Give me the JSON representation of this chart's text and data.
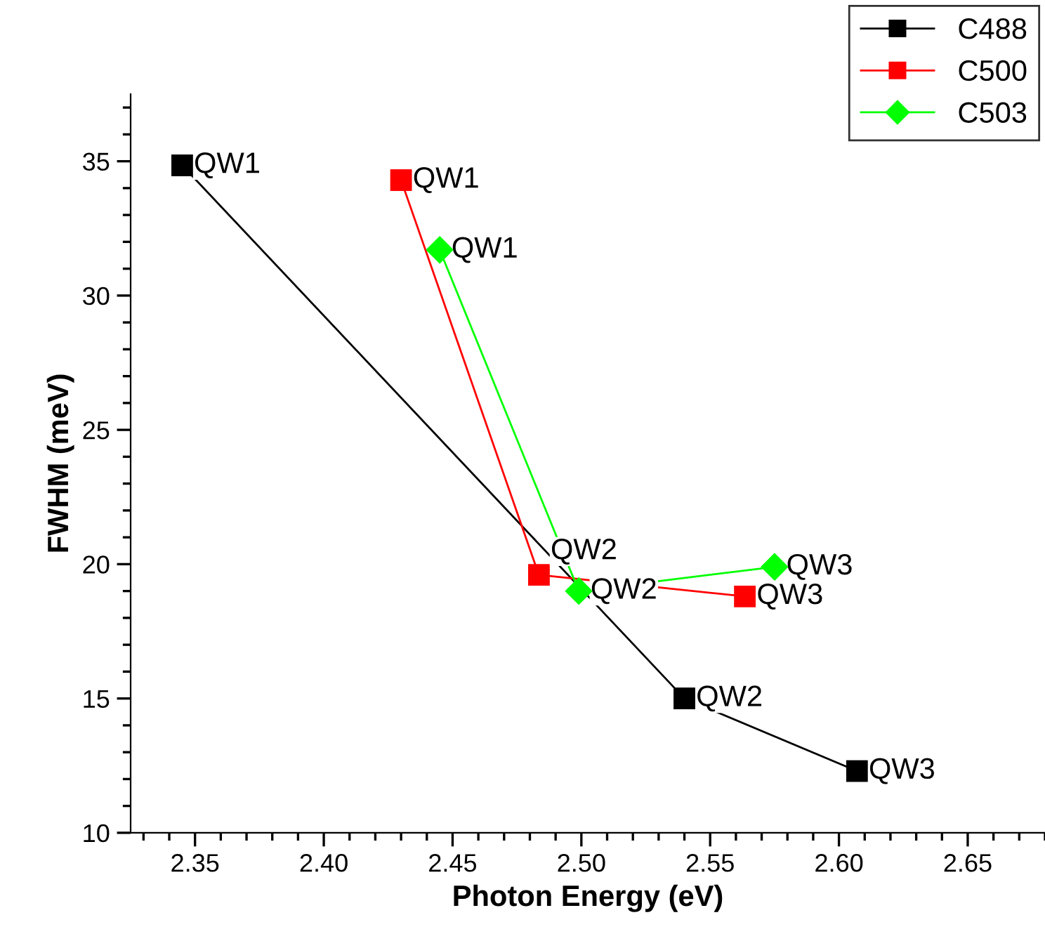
{
  "chart_data": {
    "type": "line",
    "xlabel": "Photon Energy (eV)",
    "ylabel": "FWHM (meV)",
    "xlim": [
      2.325,
      2.68
    ],
    "ylim": [
      10,
      37.5
    ],
    "xticks": [
      2.35,
      {
        "value": 2.4,
        "label": "2.40"
      },
      2.45,
      {
        "value": 2.5,
        "label": "2.50"
      },
      2.55,
      {
        "value": 2.6,
        "label": "2.60"
      },
      2.65
    ],
    "yticks": [
      10,
      15,
      20,
      25,
      30,
      35
    ],
    "legend": "top right",
    "grid": false,
    "line_style": "solid",
    "series": [
      {
        "name": "C488",
        "color": "#000000",
        "marker": "square",
        "x": [
          2.345,
          2.54,
          2.607
        ],
        "values": [
          34.85,
          15.0,
          12.3
        ]
      },
      {
        "name": "C500",
        "color": "#ff0000",
        "marker": "square",
        "x": [
          2.43,
          2.4835,
          2.5635
        ],
        "values": [
          34.3,
          19.6,
          18.8
        ]
      },
      {
        "name": "C503",
        "color": "#00ff00",
        "marker": "diamond",
        "x": [
          2.445,
          2.499,
          2.575
        ],
        "values": [
          31.7,
          19.0,
          19.9
        ]
      }
    ],
    "annotations": [
      {
        "text": "QW1",
        "x": 2.345,
        "y": 34.85
      },
      {
        "text": "QW2",
        "x": 2.54,
        "y": 15.0
      },
      {
        "text": "QW3",
        "x": 2.607,
        "y": 12.3
      },
      {
        "text": "QW1",
        "x": 2.43,
        "y": 34.3
      },
      {
        "text": "QW2",
        "x": 2.4835,
        "y": 19.6
      },
      {
        "text": "QW3",
        "x": 2.5635,
        "y": 18.8
      },
      {
        "text": "QW1",
        "x": 2.445,
        "y": 31.7
      },
      {
        "text": "QW2",
        "x": 2.499,
        "y": 19.0
      },
      {
        "text": "QW3",
        "x": 2.575,
        "y": 19.9
      }
    ]
  }
}
